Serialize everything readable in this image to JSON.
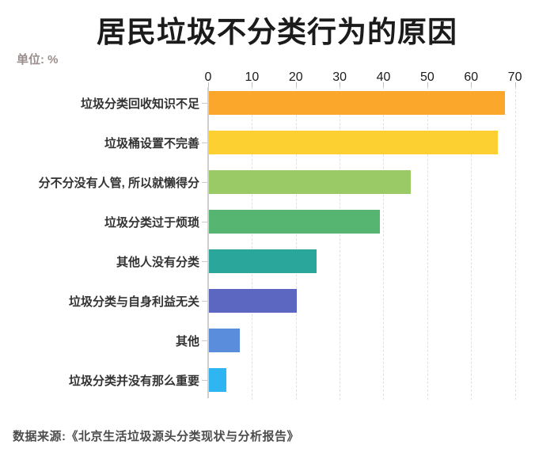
{
  "page": {
    "title": "居民垃圾不分类行为的原因",
    "unit_label": "单位: %",
    "source": "数据来源:《北京生活垃圾源头分类现状与分析报告》"
  },
  "colors": {
    "title_text": "#1b1b1b",
    "unit_text": "#9c8d8d",
    "category_text": "#333333",
    "axis_text": "#1b1b1b",
    "source_text": "#4c4c4c",
    "gridline": "#e0e0e0",
    "axis_line": "#cfcfcf",
    "background": "#ffffff"
  },
  "chart_data": {
    "type": "bar",
    "orientation": "horizontal",
    "title": "居民垃圾不分类行为的原因",
    "unit": "%",
    "xlabel": "",
    "ylabel": "",
    "axis_position": "top",
    "grid": "vertical-dashed",
    "legend": "none",
    "xlim": [
      0,
      72
    ],
    "x_ticks": [
      0,
      10,
      20,
      30,
      40,
      50,
      60,
      70
    ],
    "categories": [
      "垃圾分类回收知识不足",
      "垃圾桶设置不完善",
      "分不分没有人管, 所以就懒得分",
      "垃圾分类过于烦琐",
      "其他人没有分类",
      "垃圾分类与自身利益无关",
      "其他",
      "垃圾分类并没有那么重要"
    ],
    "values": [
      67.5,
      66,
      46,
      39,
      24.5,
      20,
      7,
      4
    ],
    "bar_colors": [
      "#FBA72C",
      "#FDD031",
      "#9ACA66",
      "#56B570",
      "#2BA69A",
      "#5B67C1",
      "#5A8DDB",
      "#2FB5F2"
    ],
    "source": "数据来源:《北京生活垃圾源头分类现状与分析报告》"
  }
}
